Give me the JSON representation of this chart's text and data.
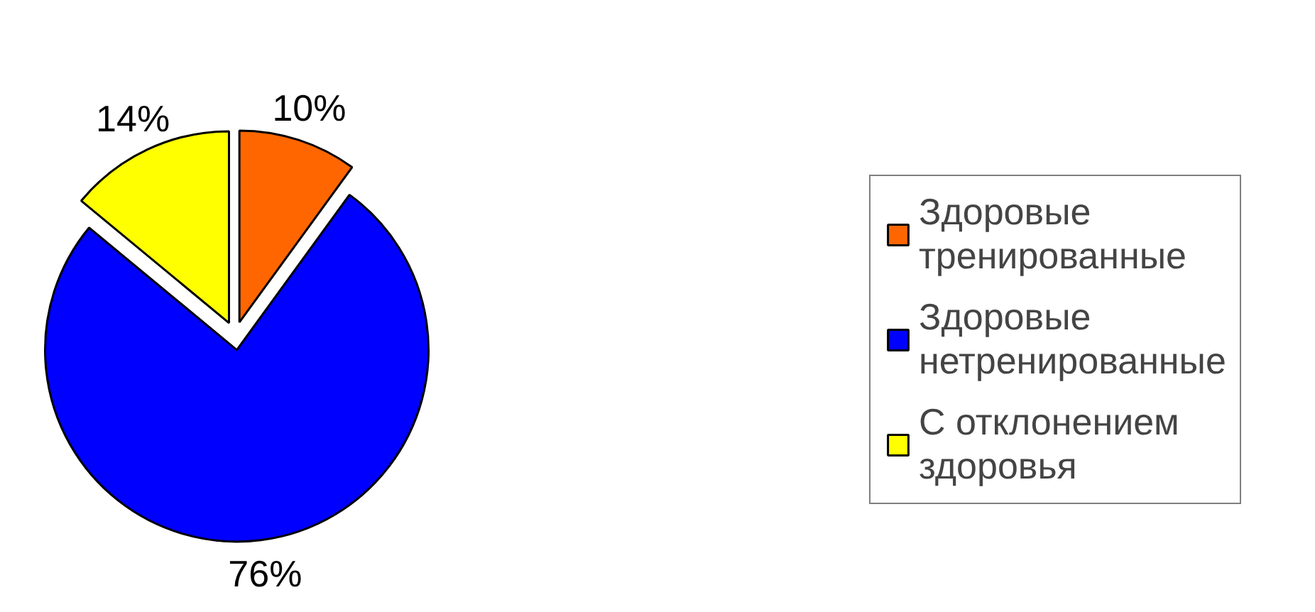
{
  "chart_data": {
    "type": "pie",
    "categories": [
      "Здоровые тренированные",
      "Здоровые нетренированные",
      "С отклонением здоровья"
    ],
    "values": [
      10,
      76,
      14
    ],
    "colors": [
      "#ff6600",
      "#0000ff",
      "#ffff00"
    ],
    "value_labels": [
      "10%",
      "76%",
      "14%"
    ],
    "legend": "right"
  }
}
